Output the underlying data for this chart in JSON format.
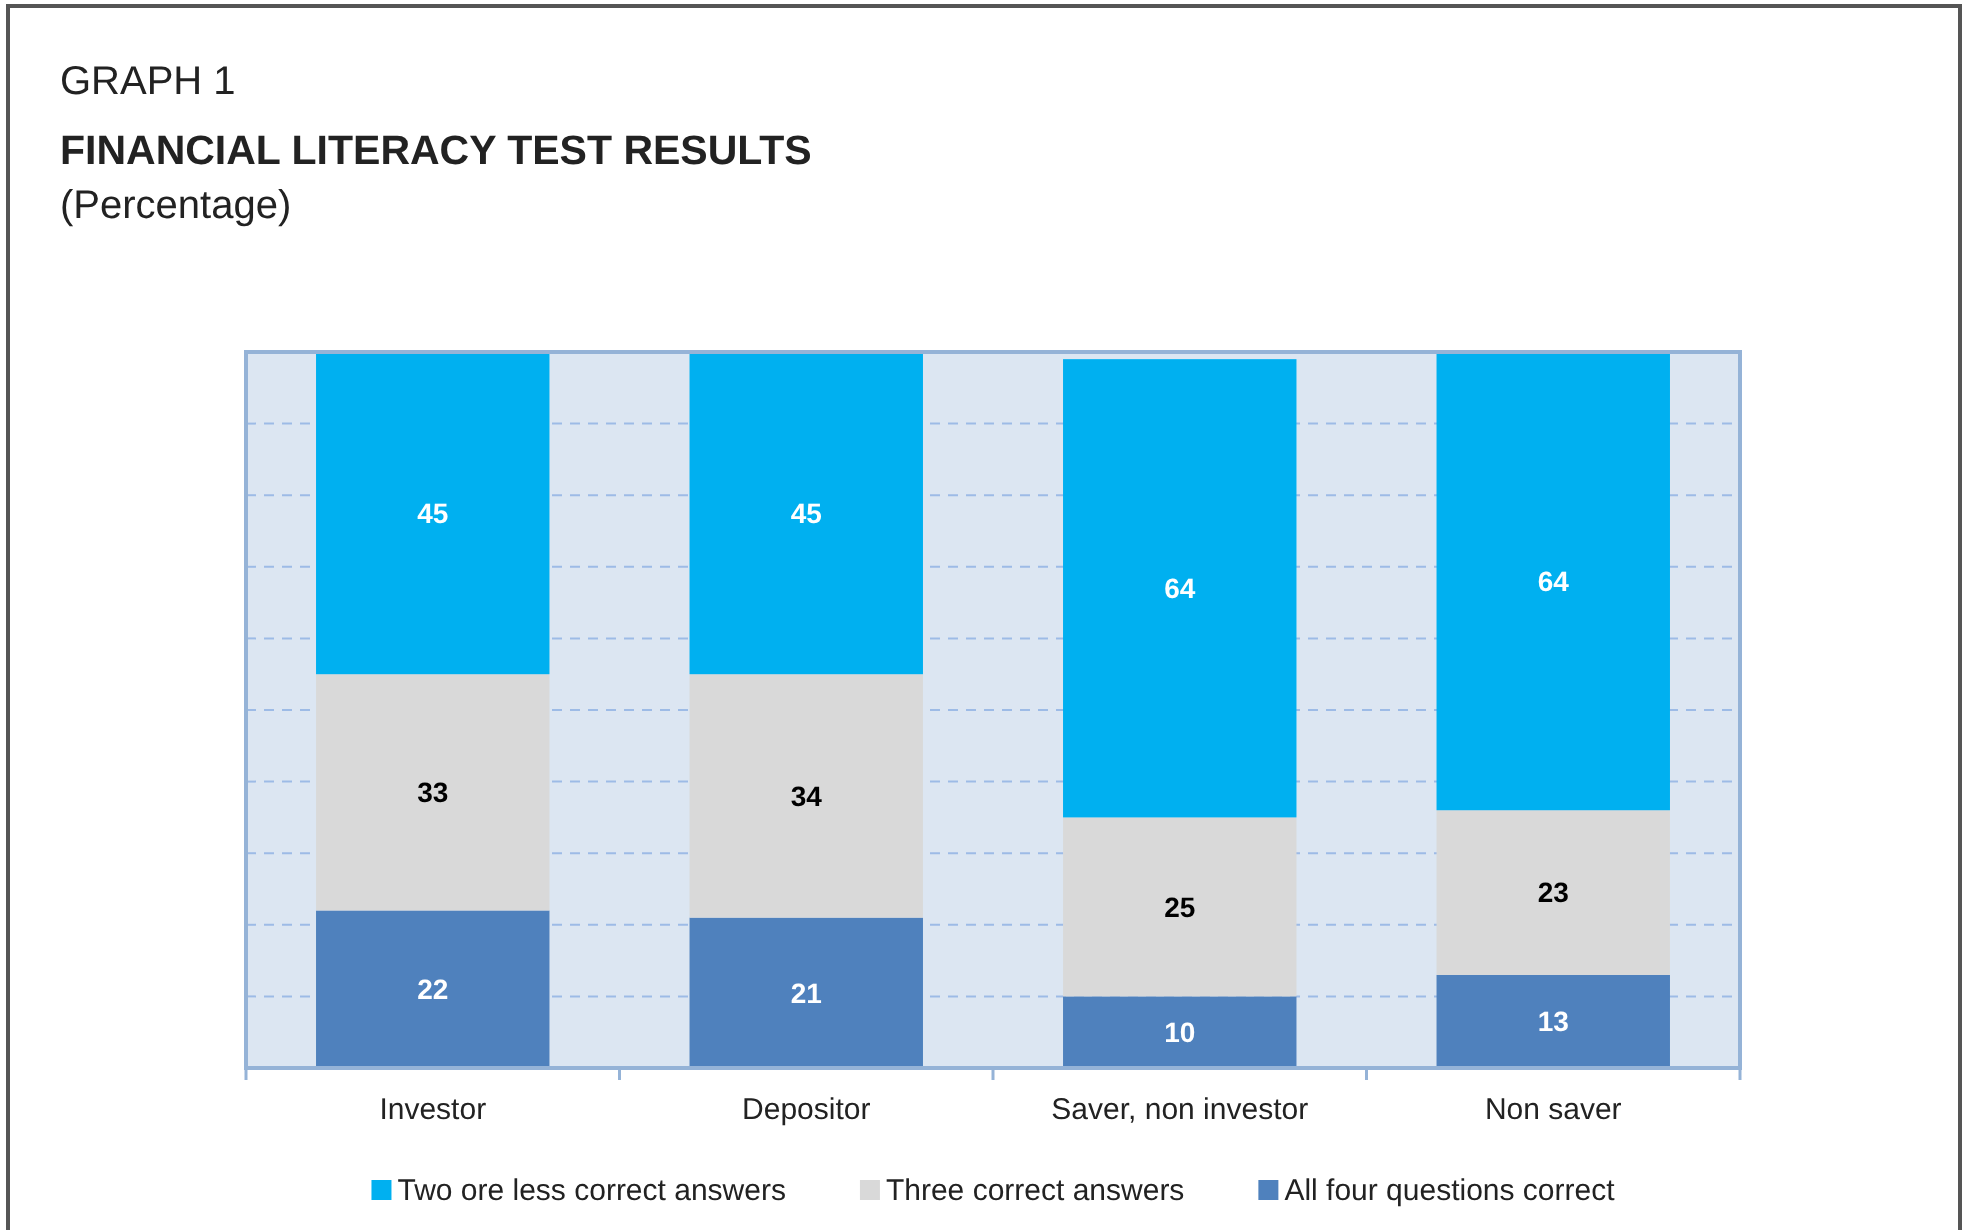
{
  "chart_data": {
    "type": "bar",
    "title": "FINANCIAL LITERACY TEST RESULTS",
    "subtitle": "(Percentage)",
    "annotations": [
      "GRAPH 1"
    ],
    "categories": [
      "Investor",
      "Depositor",
      "Saver, non investor",
      "Non saver"
    ],
    "series": [
      {
        "name": "All four questions correct",
        "color": "#4f81bd",
        "values": [
          22,
          21,
          10,
          13
        ]
      },
      {
        "name": "Three correct answers",
        "color": "#d9d9d9",
        "values": [
          33,
          34,
          25,
          23
        ]
      },
      {
        "name": "Two ore less correct answers",
        "color": "#00b0f0",
        "values": [
          45,
          45,
          64,
          64
        ]
      }
    ],
    "stacked": true,
    "ylim": [
      0,
      100
    ],
    "yticks": [
      {
        "value": 0,
        "label": null
      },
      {
        "value": 10,
        "label": null
      },
      {
        "value": 20,
        "label": null
      },
      {
        "value": 30,
        "label": null
      },
      {
        "value": 40,
        "label": null
      },
      {
        "value": 50,
        "label": null
      },
      {
        "value": 60,
        "label": null
      },
      {
        "value": 70,
        "label": null
      },
      {
        "value": 80,
        "label": null
      },
      {
        "value": 90,
        "label": null
      },
      {
        "value": 100,
        "label": null
      }
    ],
    "tick_labels": "x",
    "grid": "y",
    "legend": "bottom",
    "data_labels": true
  }
}
